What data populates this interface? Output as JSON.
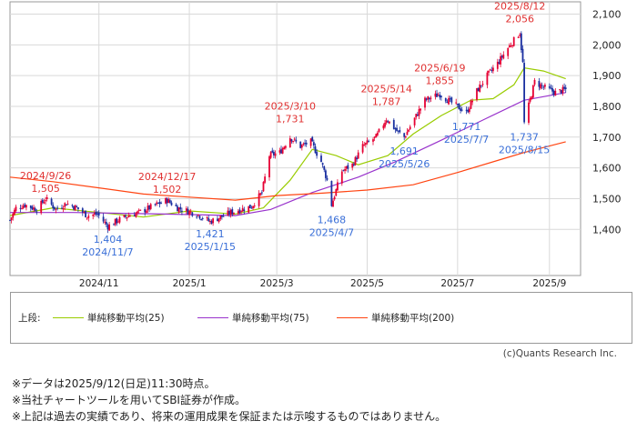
{
  "chart_data": {
    "type": "candlestick",
    "y_axis": {
      "ticks": [
        1400,
        1500,
        1600,
        1700,
        1800,
        1900,
        2000,
        2100
      ],
      "tick_labels": [
        "1,400",
        "1,500",
        "1,600",
        "1,700",
        "1,800",
        "1,900",
        "2,000",
        "2,100"
      ],
      "ylim": [
        1250,
        2140
      ],
      "position": "right"
    },
    "x_axis": {
      "ticks": [
        "2024/11",
        "2025/1",
        "2025/3",
        "2025/5",
        "2025/7",
        "2025/9"
      ],
      "range": [
        "2024-09-02",
        "2025-09-22"
      ]
    },
    "grid": true,
    "colors": {
      "up": "#e60033",
      "down": "#1a2fa0",
      "ma25": "#99cc00",
      "ma75": "#9933cc",
      "ma200": "#ff4411",
      "annotation_high": "#e03030",
      "annotation_low": "#3a6fd8"
    },
    "price_path": [
      [
        "2024-09-02",
        1430
      ],
      [
        "2024-09-06",
        1470
      ],
      [
        "2024-09-12",
        1480
      ],
      [
        "2024-09-20",
        1465
      ],
      [
        "2024-09-26",
        1500
      ],
      [
        "2024-10-03",
        1465
      ],
      [
        "2024-10-10",
        1485
      ],
      [
        "2024-10-17",
        1470
      ],
      [
        "2024-10-24",
        1445
      ],
      [
        "2024-10-31",
        1450
      ],
      [
        "2024-11-07",
        1410
      ],
      [
        "2024-11-14",
        1430
      ],
      [
        "2024-11-21",
        1445
      ],
      [
        "2024-11-28",
        1455
      ],
      [
        "2024-12-05",
        1470
      ],
      [
        "2024-12-12",
        1485
      ],
      [
        "2024-12-17",
        1495
      ],
      [
        "2024-12-24",
        1470
      ],
      [
        "2025-01-06",
        1450
      ],
      [
        "2025-01-15",
        1425
      ],
      [
        "2025-01-22",
        1440
      ],
      [
        "2025-01-29",
        1455
      ],
      [
        "2025-02-05",
        1465
      ],
      [
        "2025-02-12",
        1475
      ],
      [
        "2025-02-19",
        1520
      ],
      [
        "2025-02-24",
        1640
      ],
      [
        "2025-03-03",
        1650
      ],
      [
        "2025-03-10",
        1700
      ],
      [
        "2025-03-17",
        1670
      ],
      [
        "2025-03-24",
        1685
      ],
      [
        "2025-03-31",
        1620
      ],
      [
        "2025-04-04",
        1560
      ],
      [
        "2025-04-07",
        1480
      ],
      [
        "2025-04-14",
        1590
      ],
      [
        "2025-04-21",
        1610
      ],
      [
        "2025-04-28",
        1670
      ],
      [
        "2025-05-07",
        1700
      ],
      [
        "2025-05-14",
        1760
      ],
      [
        "2025-05-21",
        1720
      ],
      [
        "2025-05-26",
        1700
      ],
      [
        "2025-06-02",
        1760
      ],
      [
        "2025-06-09",
        1820
      ],
      [
        "2025-06-19",
        1840
      ],
      [
        "2025-06-26",
        1815
      ],
      [
        "2025-07-07",
        1780
      ],
      [
        "2025-07-14",
        1850
      ],
      [
        "2025-07-21",
        1900
      ],
      [
        "2025-07-28",
        1940
      ],
      [
        "2025-08-04",
        1990
      ],
      [
        "2025-08-12",
        2040
      ],
      [
        "2025-08-14",
        1940
      ],
      [
        "2025-08-15",
        1745
      ],
      [
        "2025-08-22",
        1880
      ],
      [
        "2025-08-29",
        1860
      ],
      [
        "2025-09-05",
        1845
      ],
      [
        "2025-09-12",
        1855
      ]
    ],
    "series": [
      {
        "name": "単純移動平均(25)",
        "color": "#99cc00",
        "points": [
          [
            "2024-09-02",
            1445
          ],
          [
            "2024-10-01",
            1470
          ],
          [
            "2024-11-01",
            1455
          ],
          [
            "2024-12-01",
            1440
          ],
          [
            "2025-01-01",
            1460
          ],
          [
            "2025-02-01",
            1450
          ],
          [
            "2025-02-20",
            1470
          ],
          [
            "2025-03-10",
            1560
          ],
          [
            "2025-03-25",
            1660
          ],
          [
            "2025-04-10",
            1640
          ],
          [
            "2025-04-25",
            1610
          ],
          [
            "2025-05-15",
            1640
          ],
          [
            "2025-06-01",
            1710
          ],
          [
            "2025-06-20",
            1770
          ],
          [
            "2025-07-10",
            1820
          ],
          [
            "2025-07-25",
            1825
          ],
          [
            "2025-08-08",
            1870
          ],
          [
            "2025-08-15",
            1925
          ],
          [
            "2025-08-28",
            1915
          ],
          [
            "2025-09-12",
            1890
          ]
        ]
      },
      {
        "name": "単純移動平均(75)",
        "color": "#9933cc",
        "points": [
          [
            "2024-09-02",
            1455
          ],
          [
            "2024-10-15",
            1455
          ],
          [
            "2024-12-15",
            1450
          ],
          [
            "2025-02-01",
            1445
          ],
          [
            "2025-02-25",
            1465
          ],
          [
            "2025-03-25",
            1520
          ],
          [
            "2025-04-25",
            1570
          ],
          [
            "2025-05-20",
            1620
          ],
          [
            "2025-06-20",
            1690
          ],
          [
            "2025-07-20",
            1760
          ],
          [
            "2025-08-15",
            1820
          ],
          [
            "2025-09-12",
            1845
          ]
        ]
      },
      {
        "name": "単純移動平均(200)",
        "color": "#ff4411",
        "points": [
          [
            "2024-09-02",
            1570
          ],
          [
            "2024-10-01",
            1555
          ],
          [
            "2024-11-01",
            1535
          ],
          [
            "2024-12-01",
            1515
          ],
          [
            "2025-01-01",
            1505
          ],
          [
            "2025-02-01",
            1495
          ],
          [
            "2025-03-01",
            1510
          ],
          [
            "2025-04-01",
            1518
          ],
          [
            "2025-05-01",
            1528
          ],
          [
            "2025-06-01",
            1545
          ],
          [
            "2025-07-01",
            1585
          ],
          [
            "2025-08-01",
            1630
          ],
          [
            "2025-08-15",
            1650
          ],
          [
            "2025-09-12",
            1685
          ]
        ]
      }
    ],
    "annotations": [
      {
        "date": "2024-09-26",
        "value": 1505,
        "date_label": "2024/9/26",
        "value_label": "1,505",
        "kind": "high",
        "place": "above"
      },
      {
        "date": "2024-11-07",
        "value": 1404,
        "date_label": "2024/11/7",
        "value_label": "1,404",
        "kind": "low",
        "place": "below"
      },
      {
        "date": "2024-12-17",
        "value": 1502,
        "date_label": "2024/12/17",
        "value_label": "1,502",
        "kind": "high",
        "place": "above"
      },
      {
        "date": "2025-01-15",
        "value": 1421,
        "date_label": "2025/1/15",
        "value_label": "1,421",
        "kind": "low",
        "place": "below"
      },
      {
        "date": "2025-03-10",
        "value": 1731,
        "date_label": "2025/3/10",
        "value_label": "1,731",
        "kind": "high",
        "place": "above"
      },
      {
        "date": "2025-04-07",
        "value": 1468,
        "date_label": "2025/4/7",
        "value_label": "1,468",
        "kind": "low",
        "place": "below"
      },
      {
        "date": "2025-05-14",
        "value": 1787,
        "date_label": "2025/5/14",
        "value_label": "1,787",
        "kind": "high",
        "place": "above"
      },
      {
        "date": "2025-05-26",
        "value": 1691,
        "date_label": "2025/5/26",
        "value_label": "1,691",
        "kind": "low",
        "place": "below"
      },
      {
        "date": "2025-06-19",
        "value": 1855,
        "date_label": "2025/6/19",
        "value_label": "1,855",
        "kind": "high",
        "place": "above"
      },
      {
        "date": "2025-07-07",
        "value": 1771,
        "date_label": "2025/7/7",
        "value_label": "1,771",
        "kind": "low",
        "place": "below"
      },
      {
        "date": "2025-08-12",
        "value": 2056,
        "date_label": "2025/8/12",
        "value_label": "2,056",
        "kind": "high",
        "place": "above"
      },
      {
        "date": "2025-08-15",
        "value": 1737,
        "date_label": "2025/8/15",
        "value_label": "1,737",
        "kind": "low",
        "place": "below"
      }
    ]
  },
  "legend": {
    "prefix": "上段:",
    "items": [
      {
        "label": "単純移動平均(25)",
        "color": "#99cc00"
      },
      {
        "label": "単純移動平均(75)",
        "color": "#9933cc"
      },
      {
        "label": "単純移動平均(200)",
        "color": "#ff4411"
      }
    ]
  },
  "copyright": "(c)Quants Research Inc.",
  "notes": [
    "※データは2025/9/12(日足)11:30時点。",
    "※当社チャートツールを用いてSBI証券が作成。",
    "※上記は過去の実績であり、将来の運用成果を保証または示唆するものではありません。"
  ]
}
